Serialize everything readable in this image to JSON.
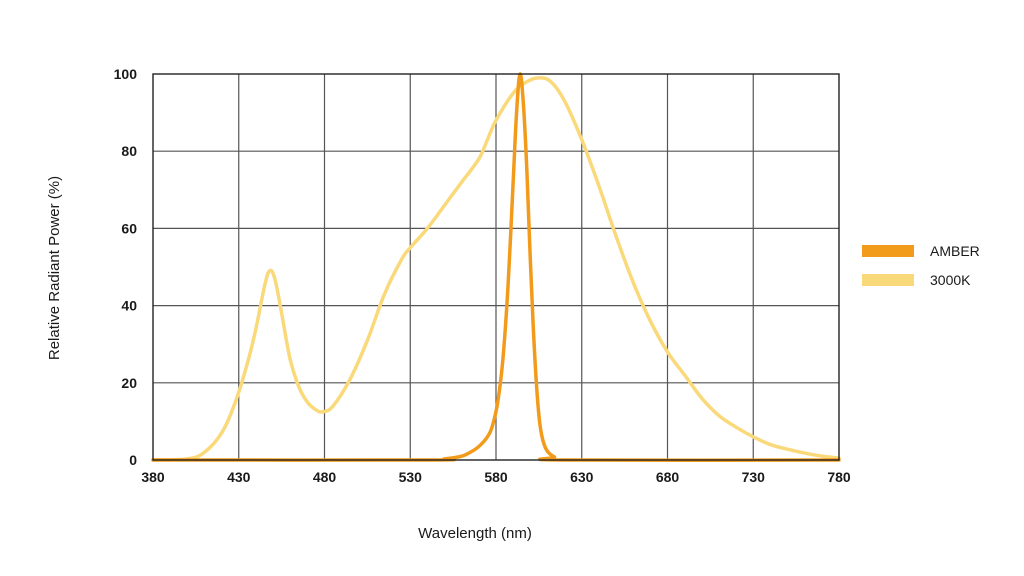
{
  "chart_data": {
    "type": "line",
    "title": "",
    "xlabel": "Wavelength (nm)",
    "ylabel": "Relative Radiant Power (%)",
    "xlim": [
      380,
      780
    ],
    "ylim": [
      0,
      100
    ],
    "x_ticks": [
      380,
      430,
      480,
      530,
      580,
      630,
      680,
      730,
      780
    ],
    "y_ticks": [
      0,
      20,
      40,
      60,
      80,
      100
    ],
    "grid": true,
    "legend_position": "right",
    "series": [
      {
        "name": "AMBER",
        "color": "#F29A1A",
        "points": [
          [
            380,
            0
          ],
          [
            540,
            0
          ],
          [
            550,
            0.3
          ],
          [
            560,
            1
          ],
          [
            565,
            2
          ],
          [
            570,
            3.5
          ],
          [
            575,
            6
          ],
          [
            578,
            9
          ],
          [
            581,
            15
          ],
          [
            584,
            26
          ],
          [
            587,
            45
          ],
          [
            590,
            72
          ],
          [
            592,
            90
          ],
          [
            594,
            100
          ],
          [
            596,
            92
          ],
          [
            598,
            75
          ],
          [
            600,
            52
          ],
          [
            602,
            32
          ],
          [
            604,
            17
          ],
          [
            606,
            8
          ],
          [
            609,
            3
          ],
          [
            614,
            0.8
          ],
          [
            620,
            0
          ],
          [
            780,
            0
          ]
        ]
      },
      {
        "name": "3000K",
        "color": "#FAD97A",
        "points": [
          [
            380,
            0
          ],
          [
            400,
            0.3
          ],
          [
            410,
            2
          ],
          [
            420,
            7
          ],
          [
            428,
            15
          ],
          [
            435,
            25
          ],
          [
            440,
            34
          ],
          [
            445,
            45
          ],
          [
            448,
            49
          ],
          [
            451,
            47
          ],
          [
            455,
            38
          ],
          [
            460,
            26
          ],
          [
            465,
            19
          ],
          [
            470,
            15
          ],
          [
            475,
            13
          ],
          [
            479,
            12.5
          ],
          [
            485,
            14
          ],
          [
            495,
            21
          ],
          [
            505,
            31
          ],
          [
            515,
            43
          ],
          [
            525,
            52
          ],
          [
            530,
            55
          ],
          [
            540,
            60
          ],
          [
            550,
            66
          ],
          [
            560,
            72
          ],
          [
            570,
            78
          ],
          [
            575,
            83
          ],
          [
            580,
            88
          ],
          [
            590,
            95
          ],
          [
            598,
            98
          ],
          [
            605,
            99
          ],
          [
            612,
            98
          ],
          [
            620,
            93
          ],
          [
            630,
            83
          ],
          [
            640,
            71
          ],
          [
            650,
            58
          ],
          [
            660,
            46
          ],
          [
            670,
            36
          ],
          [
            680,
            28
          ],
          [
            690,
            22
          ],
          [
            700,
            16
          ],
          [
            710,
            11.5
          ],
          [
            720,
            8.5
          ],
          [
            730,
            6
          ],
          [
            740,
            4
          ],
          [
            750,
            2.8
          ],
          [
            760,
            1.8
          ],
          [
            770,
            1
          ],
          [
            780,
            0.5
          ]
        ]
      }
    ]
  }
}
